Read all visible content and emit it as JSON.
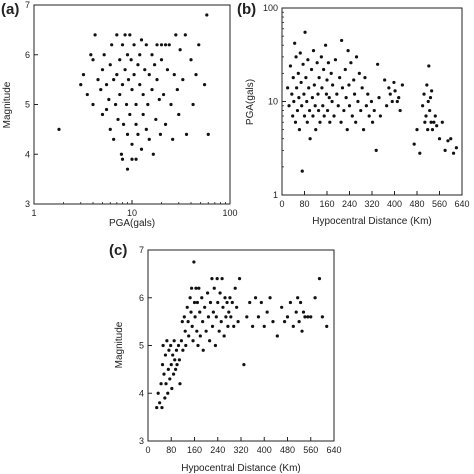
{
  "chart_data": [
    {
      "panel": "(a)",
      "type": "scatter",
      "xlabel": "PGA(gals)",
      "ylabel": "Magnitude",
      "xscale": "log",
      "xlim": [
        1,
        100
      ],
      "ylim": [
        3,
        7
      ],
      "xticks": [
        1,
        10,
        100
      ],
      "xtick_labels": [
        "1",
        "10",
        "100"
      ],
      "yticks": [
        3,
        4,
        5,
        6,
        7
      ],
      "grid": false,
      "points": [
        [
          1.8,
          4.5
        ],
        [
          3.0,
          5.4
        ],
        [
          3.2,
          5.6
        ],
        [
          3.5,
          5.2
        ],
        [
          3.8,
          6.0
        ],
        [
          4.0,
          5.9
        ],
        [
          4.0,
          5.0
        ],
        [
          4.2,
          6.4
        ],
        [
          4.5,
          5.5
        ],
        [
          4.8,
          5.3
        ],
        [
          5.0,
          5.7
        ],
        [
          5.0,
          4.8
        ],
        [
          5.2,
          6.0
        ],
        [
          5.5,
          5.4
        ],
        [
          5.5,
          4.9
        ],
        [
          5.8,
          5.1
        ],
        [
          6.0,
          5.8
        ],
        [
          6.0,
          4.5
        ],
        [
          6.2,
          6.2
        ],
        [
          6.5,
          5.5
        ],
        [
          6.5,
          4.3
        ],
        [
          6.8,
          5.0
        ],
        [
          7.0,
          6.4
        ],
        [
          7.0,
          5.6
        ],
        [
          7.2,
          4.7
        ],
        [
          7.5,
          5.9
        ],
        [
          7.5,
          5.2
        ],
        [
          7.8,
          4.0
        ],
        [
          8.0,
          6.2
        ],
        [
          8.0,
          5.4
        ],
        [
          8.0,
          3.9
        ],
        [
          8.2,
          4.6
        ],
        [
          8.5,
          6.4
        ],
        [
          8.5,
          5.7
        ],
        [
          8.8,
          5.0
        ],
        [
          9.0,
          6.0
        ],
        [
          9.0,
          4.4
        ],
        [
          9.0,
          3.7
        ],
        [
          9.2,
          5.5
        ],
        [
          9.5,
          6.4
        ],
        [
          9.5,
          4.8
        ],
        [
          9.8,
          5.9
        ],
        [
          10.0,
          5.3
        ],
        [
          10.0,
          4.2
        ],
        [
          10.0,
          3.9
        ],
        [
          10.5,
          6.2
        ],
        [
          10.5,
          5.6
        ],
        [
          11.0,
          5.0
        ],
        [
          11.0,
          4.6
        ],
        [
          11.0,
          3.9
        ],
        [
          11.5,
          5.8
        ],
        [
          11.5,
          4.4
        ],
        [
          12.0,
          6.0
        ],
        [
          12.0,
          5.4
        ],
        [
          12.5,
          4.1
        ],
        [
          12.5,
          6.3
        ],
        [
          13.0,
          5.2
        ],
        [
          13.0,
          4.8
        ],
        [
          13.5,
          5.7
        ],
        [
          14.0,
          6.2
        ],
        [
          14.0,
          4.5
        ],
        [
          14.5,
          5.0
        ],
        [
          15.0,
          5.6
        ],
        [
          15.0,
          4.3
        ],
        [
          16.0,
          6.0
        ],
        [
          16.0,
          5.3
        ],
        [
          16.5,
          4.0
        ],
        [
          17.0,
          5.8
        ],
        [
          17.5,
          4.7
        ],
        [
          18.0,
          6.2
        ],
        [
          18.0,
          5.5
        ],
        [
          19.0,
          5.1
        ],
        [
          19.5,
          4.4
        ],
        [
          20.0,
          6.2
        ],
        [
          20.0,
          5.9
        ],
        [
          21.0,
          5.2
        ],
        [
          22.0,
          6.2
        ],
        [
          22.0,
          4.6
        ],
        [
          23.0,
          5.7
        ],
        [
          24.0,
          6.2
        ],
        [
          25.0,
          5.0
        ],
        [
          26.0,
          4.3
        ],
        [
          27.0,
          5.6
        ],
        [
          28.0,
          6.4
        ],
        [
          29.0,
          5.3
        ],
        [
          30.0,
          4.8
        ],
        [
          31.0,
          6.1
        ],
        [
          33.0,
          5.5
        ],
        [
          35.0,
          6.4
        ],
        [
          36.0,
          4.4
        ],
        [
          40.0,
          5.9
        ],
        [
          42.0,
          5.0
        ],
        [
          45.0,
          5.6
        ],
        [
          48.0,
          6.2
        ],
        [
          55.0,
          5.4
        ],
        [
          58.0,
          6.8
        ],
        [
          60.0,
          4.4
        ]
      ]
    },
    {
      "panel": "(b)",
      "type": "scatter",
      "xlabel": "Hypocentral Distance (Km)",
      "ylabel": "PGA(gals)",
      "yscale": "log",
      "xlim": [
        0,
        640
      ],
      "ylim": [
        1,
        100
      ],
      "xticks": [
        0,
        80,
        160,
        240,
        320,
        400,
        480,
        560,
        640
      ],
      "yticks": [
        1,
        10,
        100
      ],
      "ytick_labels": [
        "1",
        "10",
        "100"
      ],
      "grid": false,
      "points": [
        [
          20,
          14
        ],
        [
          25,
          9
        ],
        [
          30,
          24
        ],
        [
          35,
          12
        ],
        [
          38,
          7
        ],
        [
          40,
          18
        ],
        [
          42,
          10
        ],
        [
          45,
          42
        ],
        [
          48,
          6
        ],
        [
          50,
          30
        ],
        [
          52,
          14
        ],
        [
          55,
          8
        ],
        [
          58,
          20
        ],
        [
          60,
          11
        ],
        [
          62,
          5
        ],
        [
          65,
          33
        ],
        [
          68,
          16
        ],
        [
          70,
          9
        ],
        [
          72,
          1.8
        ],
        [
          75,
          25
        ],
        [
          78,
          12
        ],
        [
          80,
          7
        ],
        [
          82,
          55
        ],
        [
          85,
          18
        ],
        [
          88,
          10
        ],
        [
          90,
          6
        ],
        [
          92,
          28
        ],
        [
          95,
          14
        ],
        [
          98,
          8
        ],
        [
          100,
          4
        ],
        [
          105,
          22
        ],
        [
          108,
          11
        ],
        [
          110,
          7
        ],
        [
          112,
          35
        ],
        [
          115,
          15
        ],
        [
          118,
          9
        ],
        [
          120,
          5
        ],
        [
          125,
          26
        ],
        [
          128,
          12
        ],
        [
          130,
          8
        ],
        [
          132,
          18
        ],
        [
          135,
          6
        ],
        [
          140,
          30
        ],
        [
          142,
          14
        ],
        [
          145,
          9
        ],
        [
          148,
          22
        ],
        [
          150,
          7
        ],
        [
          155,
          40
        ],
        [
          158,
          12
        ],
        [
          160,
          17
        ],
        [
          162,
          8
        ],
        [
          165,
          26
        ],
        [
          168,
          11
        ],
        [
          170,
          6
        ],
        [
          175,
          20
        ],
        [
          178,
          10
        ],
        [
          180,
          15
        ],
        [
          185,
          7
        ],
        [
          190,
          28
        ],
        [
          195,
          12
        ],
        [
          200,
          9
        ],
        [
          205,
          18
        ],
        [
          210,
          6
        ],
        [
          212,
          45
        ],
        [
          215,
          14
        ],
        [
          220,
          8
        ],
        [
          225,
          22
        ],
        [
          228,
          11
        ],
        [
          232,
          5
        ],
        [
          235,
          35
        ],
        [
          238,
          15
        ],
        [
          240,
          9
        ],
        [
          245,
          26
        ],
        [
          250,
          7
        ],
        [
          255,
          17
        ],
        [
          258,
          12
        ],
        [
          262,
          6
        ],
        [
          265,
          30
        ],
        [
          270,
          10
        ],
        [
          275,
          20
        ],
        [
          280,
          8
        ],
        [
          285,
          14
        ],
        [
          290,
          5
        ],
        [
          295,
          18
        ],
        [
          300,
          9
        ],
        [
          305,
          12
        ],
        [
          310,
          7
        ],
        [
          318,
          10
        ],
        [
          322,
          6
        ],
        [
          328,
          8
        ],
        [
          335,
          3
        ],
        [
          340,
          25
        ],
        [
          345,
          11
        ],
        [
          350,
          7
        ],
        [
          365,
          17
        ],
        [
          372,
          9
        ],
        [
          380,
          14
        ],
        [
          385,
          12
        ],
        [
          392,
          10
        ],
        [
          398,
          16
        ],
        [
          402,
          13
        ],
        [
          410,
          10
        ],
        [
          415,
          11
        ],
        [
          420,
          8
        ],
        [
          428,
          15
        ],
        [
          470,
          3.5
        ],
        [
          480,
          5
        ],
        [
          490,
          2.8
        ],
        [
          500,
          9
        ],
        [
          505,
          12
        ],
        [
          508,
          6
        ],
        [
          512,
          7
        ],
        [
          515,
          15
        ],
        [
          518,
          5
        ],
        [
          520,
          10
        ],
        [
          522,
          24
        ],
        [
          525,
          8
        ],
        [
          528,
          11
        ],
        [
          530,
          6
        ],
        [
          532,
          13
        ],
        [
          535,
          5
        ],
        [
          540,
          6
        ],
        [
          545,
          7
        ],
        [
          550,
          5.5
        ],
        [
          560,
          4
        ],
        [
          570,
          6
        ],
        [
          580,
          3
        ],
        [
          590,
          3.8
        ],
        [
          600,
          4
        ],
        [
          610,
          2.8
        ],
        [
          620,
          3.2
        ]
      ]
    },
    {
      "panel": "(c)",
      "type": "scatter",
      "xlabel": "Hypocentral Distance (Km)",
      "ylabel": "Magnitude",
      "xlim": [
        0,
        640
      ],
      "ylim": [
        3,
        7
      ],
      "xticks": [
        0,
        80,
        160,
        240,
        320,
        400,
        480,
        560,
        640
      ],
      "yticks": [
        3,
        4,
        5,
        6,
        7
      ],
      "grid": false,
      "points": [
        [
          30,
          3.7
        ],
        [
          35,
          4.0
        ],
        [
          40,
          3.8
        ],
        [
          45,
          4.2
        ],
        [
          48,
          3.7
        ],
        [
          50,
          4.6
        ],
        [
          52,
          5.0
        ],
        [
          55,
          4.4
        ],
        [
          58,
          3.9
        ],
        [
          60,
          4.8
        ],
        [
          62,
          4.2
        ],
        [
          65,
          5.1
        ],
        [
          68,
          4.0
        ],
        [
          70,
          4.5
        ],
        [
          72,
          4.9
        ],
        [
          75,
          4.3
        ],
        [
          78,
          5.0
        ],
        [
          80,
          4.6
        ],
        [
          82,
          4.1
        ],
        [
          85,
          4.8
        ],
        [
          88,
          4.4
        ],
        [
          90,
          5.1
        ],
        [
          92,
          4.7
        ],
        [
          95,
          4.5
        ],
        [
          98,
          4.9
        ],
        [
          100,
          4.6
        ],
        [
          105,
          5.0
        ],
        [
          108,
          4.7
        ],
        [
          110,
          4.2
        ],
        [
          115,
          5.1
        ],
        [
          118,
          5.5
        ],
        [
          120,
          4.9
        ],
        [
          125,
          5.6
        ],
        [
          128,
          5.3
        ],
        [
          130,
          5.0
        ],
        [
          135,
          5.8
        ],
        [
          138,
          5.5
        ],
        [
          140,
          5.2
        ],
        [
          145,
          6.0
        ],
        [
          148,
          5.7
        ],
        [
          150,
          6.2
        ],
        [
          152,
          5.4
        ],
        [
          155,
          5.1
        ],
        [
          158,
          6.75
        ],
        [
          160,
          5.9
        ],
        [
          162,
          5.6
        ],
        [
          165,
          6.2
        ],
        [
          168,
          5.3
        ],
        [
          170,
          5.9
        ],
        [
          172,
          5.0
        ],
        [
          175,
          6.2
        ],
        [
          178,
          5.7
        ],
        [
          180,
          5.2
        ],
        [
          185,
          6.0
        ],
        [
          188,
          5.5
        ],
        [
          190,
          4.9
        ],
        [
          195,
          5.8
        ],
        [
          200,
          5.3
        ],
        [
          205,
          6.1
        ],
        [
          208,
          5.6
        ],
        [
          212,
          5.1
        ],
        [
          215,
          5.9
        ],
        [
          220,
          6.4
        ],
        [
          222,
          5.4
        ],
        [
          225,
          5.7
        ],
        [
          228,
          6.2
        ],
        [
          232,
          5.0
        ],
        [
          235,
          5.6
        ],
        [
          238,
          6.4
        ],
        [
          240,
          5.9
        ],
        [
          245,
          5.3
        ],
        [
          248,
          6.1
        ],
        [
          252,
          5.5
        ],
        [
          255,
          6.4
        ],
        [
          258,
          5.8
        ],
        [
          262,
          5.2
        ],
        [
          265,
          6.0
        ],
        [
          268,
          5.6
        ],
        [
          272,
          5.9
        ],
        [
          275,
          5.4
        ],
        [
          278,
          5.7
        ],
        [
          282,
          6.0
        ],
        [
          285,
          5.6
        ],
        [
          290,
          5.9
        ],
        [
          295,
          5.4
        ],
        [
          300,
          6.2
        ],
        [
          305,
          5.8
        ],
        [
          310,
          5.5
        ],
        [
          315,
          6.4
        ],
        [
          330,
          4.6
        ],
        [
          340,
          5.6
        ],
        [
          350,
          5.9
        ],
        [
          360,
          5.4
        ],
        [
          370,
          6.0
        ],
        [
          380,
          5.6
        ],
        [
          390,
          5.9
        ],
        [
          400,
          5.4
        ],
        [
          410,
          5.7
        ],
        [
          420,
          6.0
        ],
        [
          430,
          5.5
        ],
        [
          445,
          5.2
        ],
        [
          460,
          5.8
        ],
        [
          470,
          5.5
        ],
        [
          480,
          5.6
        ],
        [
          490,
          5.9
        ],
        [
          500,
          5.4
        ],
        [
          510,
          5.7
        ],
        [
          515,
          6.0
        ],
        [
          520,
          5.5
        ],
        [
          525,
          5.9
        ],
        [
          530,
          5.3
        ],
        [
          535,
          5.7
        ],
        [
          540,
          5.6
        ],
        [
          550,
          5.6
        ],
        [
          560,
          5.6
        ],
        [
          575,
          6.0
        ],
        [
          590,
          6.4
        ],
        [
          600,
          5.6
        ],
        [
          615,
          5.4
        ]
      ]
    }
  ]
}
